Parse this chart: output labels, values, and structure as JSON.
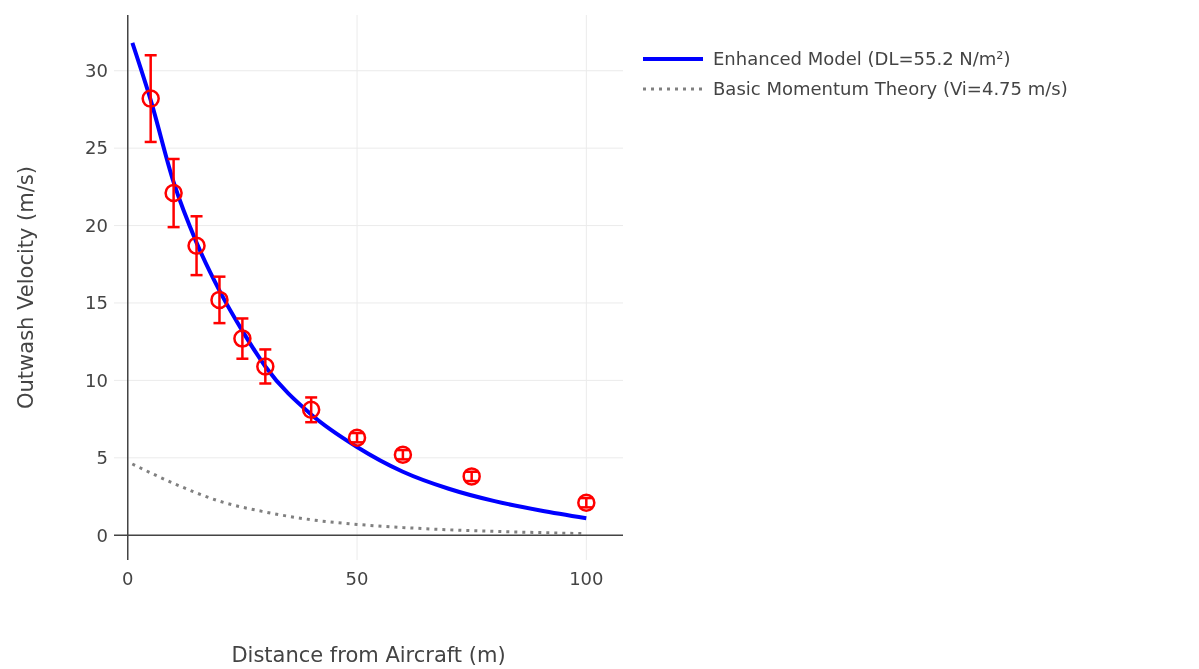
{
  "chart_data": {
    "type": "line",
    "xlabel": "Distance from Aircraft (m)",
    "ylabel": "Outwash Velocity (m/s)",
    "xlim": [
      -3,
      108
    ],
    "ylim": [
      -1.6,
      33.6
    ],
    "xticks": [
      0,
      50,
      100
    ],
    "yticks": [
      0,
      5,
      10,
      15,
      20,
      25,
      30
    ],
    "grid": true,
    "legend": "top right",
    "series": [
      {
        "name": "Enhanced Model (DL=55.2 N/m²)",
        "color": "#0000ff",
        "line_style": "solid",
        "marker": "none",
        "x": [
          1,
          5,
          10,
          15,
          20,
          25,
          30,
          40,
          50,
          60,
          70,
          80,
          90,
          100
        ],
        "values": [
          31.8,
          28.1,
          22.8,
          18.9,
          15.8,
          13.2,
          10.9,
          7.8,
          5.7,
          4.1,
          3.0,
          2.2,
          1.6,
          1.1
        ]
      },
      {
        "name": "Basic Momentum Theory (Vi=4.75 m/s)",
        "color": "#808080",
        "line_style": "dotted",
        "marker": "none",
        "x": [
          1,
          10,
          20,
          30,
          40,
          50,
          60,
          70,
          80,
          90,
          100
        ],
        "values": [
          4.6,
          3.35,
          2.2,
          1.5,
          1.0,
          0.7,
          0.5,
          0.35,
          0.25,
          0.17,
          0.1
        ]
      },
      {
        "type": "scatter",
        "color": "#ff0000",
        "marker": "circle",
        "x": [
          5,
          10,
          15,
          20,
          25,
          30,
          40,
          50,
          60,
          75,
          100
        ],
        "values": [
          28.2,
          22.1,
          18.7,
          15.2,
          12.7,
          10.9,
          8.1,
          6.3,
          5.2,
          3.8,
          2.1
        ],
        "errors": [
          2.8,
          2.2,
          1.9,
          1.5,
          1.3,
          1.1,
          0.8,
          0.3,
          0.3,
          0.3,
          0.3
        ]
      }
    ]
  }
}
